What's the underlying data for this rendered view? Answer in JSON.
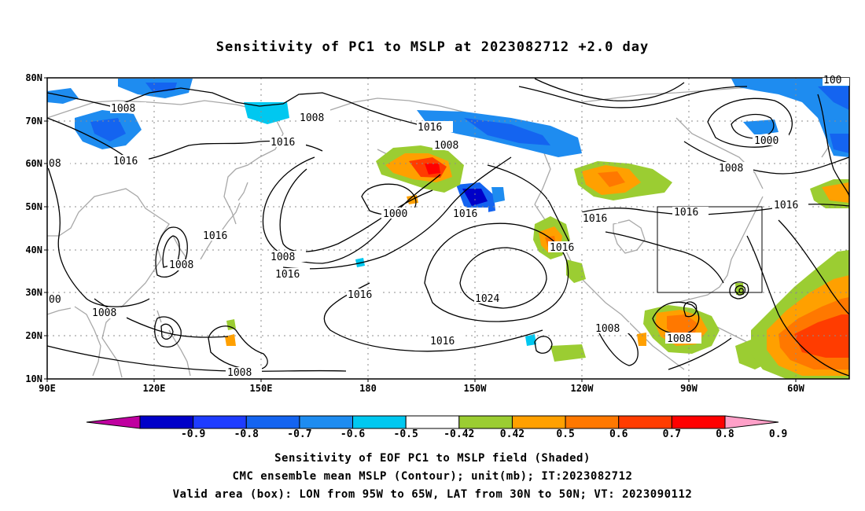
{
  "title": "Sensitivity of PC1 to MSLP at 2023082712 +2.0 day",
  "lat_labels": [
    "80N",
    "70N",
    "60N",
    "50N",
    "40N",
    "30N",
    "20N",
    "10N"
  ],
  "lon_labels": [
    "90E",
    "120E",
    "150E",
    "180",
    "150W",
    "120W",
    "90W",
    "60W"
  ],
  "colorbar": {
    "labels": [
      "-0.9",
      "-0.8",
      "-0.7",
      "-0.6",
      "-0.5",
      "-0.42",
      "0.42",
      "0.5",
      "0.6",
      "0.7",
      "0.8",
      "0.9"
    ],
    "colors": [
      "#c000a0",
      "#0000c8",
      "#1e3cff",
      "#1464f0",
      "#1e8cf0",
      "#00c8f0",
      "#ffffff",
      "#9bcd32",
      "#ffa000",
      "#ff7800",
      "#ff3c00",
      "#ff0000",
      "#ffa0c8"
    ]
  },
  "contour_labels": [
    {
      "text": "1008"
    },
    {
      "text": "1008"
    },
    {
      "text": "1016"
    },
    {
      "text": "1016"
    },
    {
      "text": "1016"
    },
    {
      "text": "1008"
    },
    {
      "text": "1000"
    },
    {
      "text": "1016"
    },
    {
      "text": "1008"
    },
    {
      "text": "1016"
    },
    {
      "text": "1016"
    },
    {
      "text": "1016"
    },
    {
      "text": "1024"
    },
    {
      "text": "1016"
    },
    {
      "text": "1016"
    },
    {
      "text": "1016"
    },
    {
      "text": "1016"
    },
    {
      "text": "1000"
    },
    {
      "text": "1008"
    },
    {
      "text": "1016"
    },
    {
      "text": "1008"
    },
    {
      "text": "1008"
    },
    {
      "text": "1008"
    },
    {
      "text": "1008"
    },
    {
      "text": "1008"
    },
    {
      "text": "1016"
    },
    {
      "text": "00"
    },
    {
      "text": "08"
    },
    {
      "text": "100"
    }
  ],
  "captions": [
    "Sensitivity of EOF PC1 to MSLP field (Shaded)",
    "CMC ensemble mean MSLP (Contour); unit(mb); IT:2023082712",
    "Valid area (box): LON from 95W to 65W, LAT from 30N to 50N; VT: 2023090112"
  ]
}
